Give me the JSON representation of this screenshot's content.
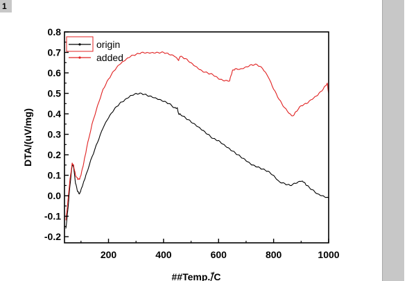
{
  "badge": {
    "label": "1"
  },
  "chart_data": {
    "type": "line",
    "title": "",
    "xlabel": "##Temp./ّC",
    "ylabel": "DTA/(uV/mg)",
    "xlim": [
      40,
      1000
    ],
    "ylim": [
      -0.23,
      0.8
    ],
    "x_ticks": [
      200,
      400,
      600,
      800,
      1000
    ],
    "y_ticks": [
      -0.2,
      -0.1,
      0.0,
      0.1,
      0.2,
      0.3,
      0.4,
      0.5,
      0.6,
      0.7,
      0.8
    ],
    "x_tick_labels": [
      "200",
      "400",
      "600",
      "800",
      "1000"
    ],
    "y_tick_labels": [
      "-0.2",
      "-0.1",
      "0.0",
      "0.1",
      "0.2",
      "0.3",
      "0.4",
      "0.5",
      "0.6",
      "0.7",
      "0.8"
    ],
    "grid": false,
    "legend_position": "top-left",
    "series": [
      {
        "name": "origin",
        "color": "#000000",
        "x": [
          45,
          52,
          60,
          68,
          73,
          80,
          88,
          95,
          100,
          110,
          120,
          140,
          160,
          180,
          200,
          220,
          240,
          260,
          280,
          300,
          320,
          340,
          360,
          380,
          400,
          420,
          440,
          450,
          455,
          460,
          480,
          500,
          520,
          540,
          560,
          580,
          600,
          620,
          640,
          660,
          680,
          700,
          720,
          740,
          760,
          780,
          800,
          820,
          840,
          860,
          880,
          900,
          910,
          920,
          940,
          960,
          980,
          1000
        ],
        "y": [
          -0.16,
          -0.07,
          0.05,
          0.15,
          0.14,
          0.06,
          0.02,
          0.01,
          0.03,
          0.07,
          0.11,
          0.19,
          0.26,
          0.33,
          0.38,
          0.42,
          0.45,
          0.47,
          0.49,
          0.5,
          0.5,
          0.49,
          0.48,
          0.47,
          0.46,
          0.45,
          0.43,
          0.43,
          0.4,
          0.4,
          0.38,
          0.36,
          0.34,
          0.32,
          0.3,
          0.28,
          0.27,
          0.25,
          0.23,
          0.21,
          0.19,
          0.17,
          0.15,
          0.14,
          0.13,
          0.12,
          0.1,
          0.07,
          0.06,
          0.05,
          0.06,
          0.07,
          0.065,
          0.05,
          0.03,
          0.01,
          0.0,
          -0.01
        ]
      },
      {
        "name": "added",
        "color": "#e02020",
        "x": [
          45,
          52,
          60,
          68,
          73,
          80,
          88,
          95,
          100,
          110,
          120,
          140,
          160,
          180,
          200,
          220,
          240,
          260,
          280,
          300,
          320,
          340,
          360,
          380,
          400,
          420,
          440,
          455,
          460,
          480,
          500,
          520,
          540,
          560,
          580,
          600,
          620,
          640,
          650,
          660,
          680,
          700,
          720,
          740,
          760,
          780,
          800,
          820,
          840,
          860,
          870,
          880,
          900,
          920,
          940,
          960,
          980,
          995,
          1000
        ],
        "y": [
          -0.12,
          -0.03,
          0.08,
          0.16,
          0.15,
          0.1,
          0.08,
          0.08,
          0.1,
          0.16,
          0.23,
          0.35,
          0.44,
          0.52,
          0.57,
          0.61,
          0.64,
          0.66,
          0.68,
          0.69,
          0.7,
          0.7,
          0.7,
          0.7,
          0.7,
          0.69,
          0.68,
          0.66,
          0.68,
          0.67,
          0.65,
          0.63,
          0.61,
          0.6,
          0.59,
          0.57,
          0.56,
          0.56,
          0.61,
          0.62,
          0.62,
          0.63,
          0.64,
          0.64,
          0.62,
          0.58,
          0.52,
          0.47,
          0.43,
          0.4,
          0.39,
          0.41,
          0.44,
          0.45,
          0.47,
          0.49,
          0.52,
          0.55,
          0.5
        ]
      }
    ]
  }
}
